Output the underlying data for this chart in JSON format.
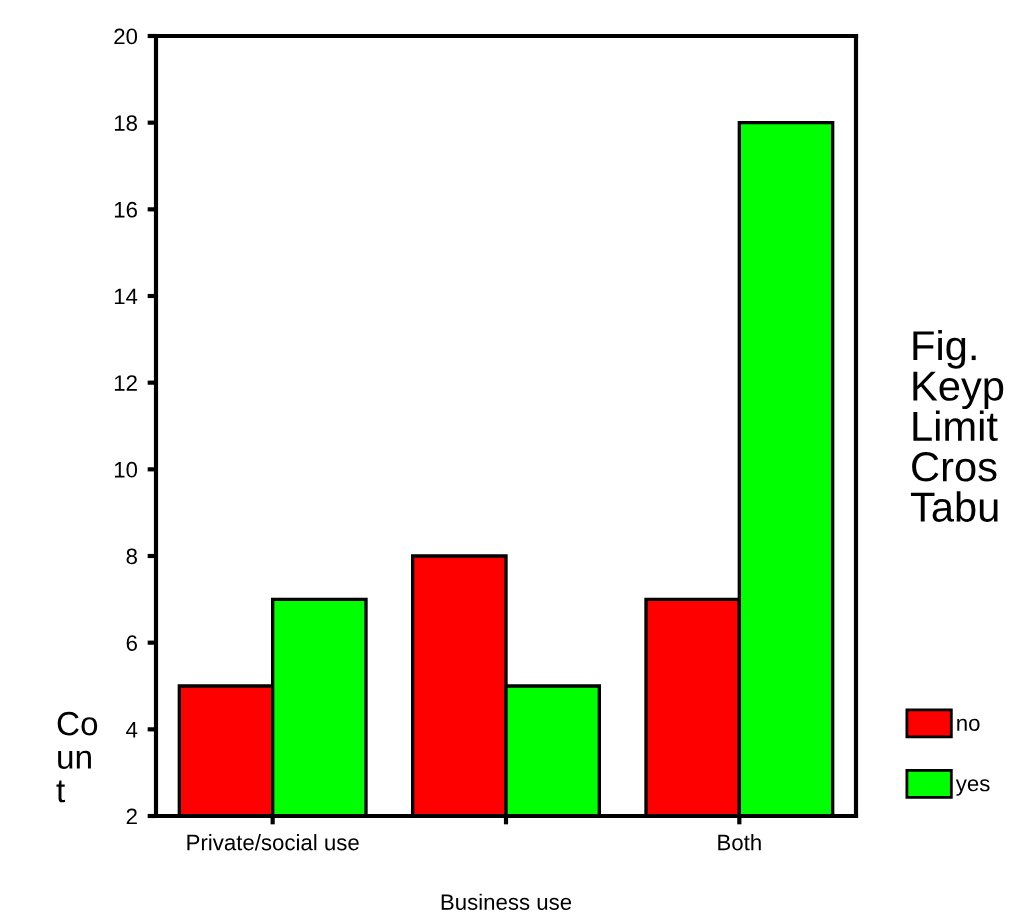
{
  "chart_data": {
    "type": "bar",
    "title": "Fig.\nKeyp\nLimit\nCros\nTabu",
    "xlabel": "Business use",
    "ylabel": "Co\nun\nt",
    "categories": [
      "Private/social use",
      null,
      "Both"
    ],
    "series": [
      {
        "name": "no",
        "color": "#ff0000",
        "values": [
          5,
          8,
          7
        ]
      },
      {
        "name": "yes",
        "color": "#00ff00",
        "values": [
          7,
          5,
          18
        ]
      }
    ],
    "ylim": [
      2,
      20
    ],
    "yticks": [
      2,
      4,
      6,
      8,
      10,
      12,
      14,
      16,
      18,
      20
    ],
    "grid": false,
    "legend": "right"
  }
}
